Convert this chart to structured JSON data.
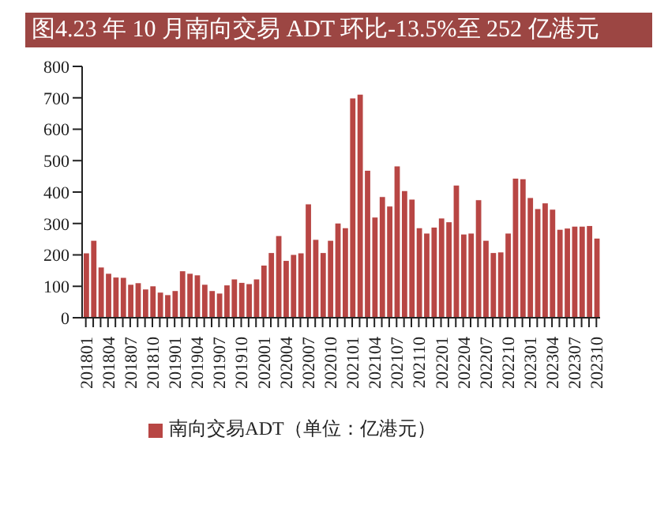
{
  "chart_data": {
    "type": "bar",
    "title": "图4.23 年 10 月南向交易 ADT 环比-13.5%至 252 亿港元",
    "categories": [
      "201801",
      null,
      null,
      "201804",
      null,
      null,
      "201807",
      null,
      null,
      "201810",
      null,
      null,
      "201901",
      null,
      null,
      "201904",
      null,
      null,
      "201907",
      null,
      null,
      "201910",
      null,
      null,
      "202001",
      null,
      null,
      "202004",
      null,
      null,
      "202007",
      null,
      null,
      "202010",
      null,
      null,
      "202101",
      null,
      null,
      "202104",
      null,
      null,
      "202107",
      null,
      null,
      "202110",
      null,
      null,
      "202201",
      null,
      null,
      "202204",
      null,
      null,
      "202207",
      null,
      null,
      "202210",
      null,
      null,
      "202301",
      null,
      null,
      "202304",
      null,
      null,
      "202307",
      null,
      null,
      "202310"
    ],
    "series": [
      {
        "name": "南向交易ADT（单位：亿港元）",
        "color": "#b84644",
        "values": [
          205,
          245,
          160,
          140,
          128,
          127,
          105,
          110,
          90,
          100,
          80,
          72,
          85,
          148,
          140,
          135,
          105,
          85,
          77,
          103,
          122,
          111,
          107,
          122,
          166,
          206,
          260,
          181,
          200,
          205,
          361,
          248,
          206,
          245,
          300,
          285,
          698,
          710,
          468,
          319,
          384,
          354,
          482,
          403,
          376,
          285,
          268,
          287,
          316,
          304,
          421,
          265,
          268,
          374,
          245,
          206,
          208,
          268,
          443,
          441,
          381,
          346,
          364,
          344,
          280,
          284,
          290,
          290,
          292,
          252
        ]
      }
    ],
    "ylim": [
      0,
      800
    ],
    "yticks": [
      0,
      100,
      200,
      300,
      400,
      500,
      600,
      700,
      800
    ],
    "grid": false,
    "legend": "bottom"
  }
}
